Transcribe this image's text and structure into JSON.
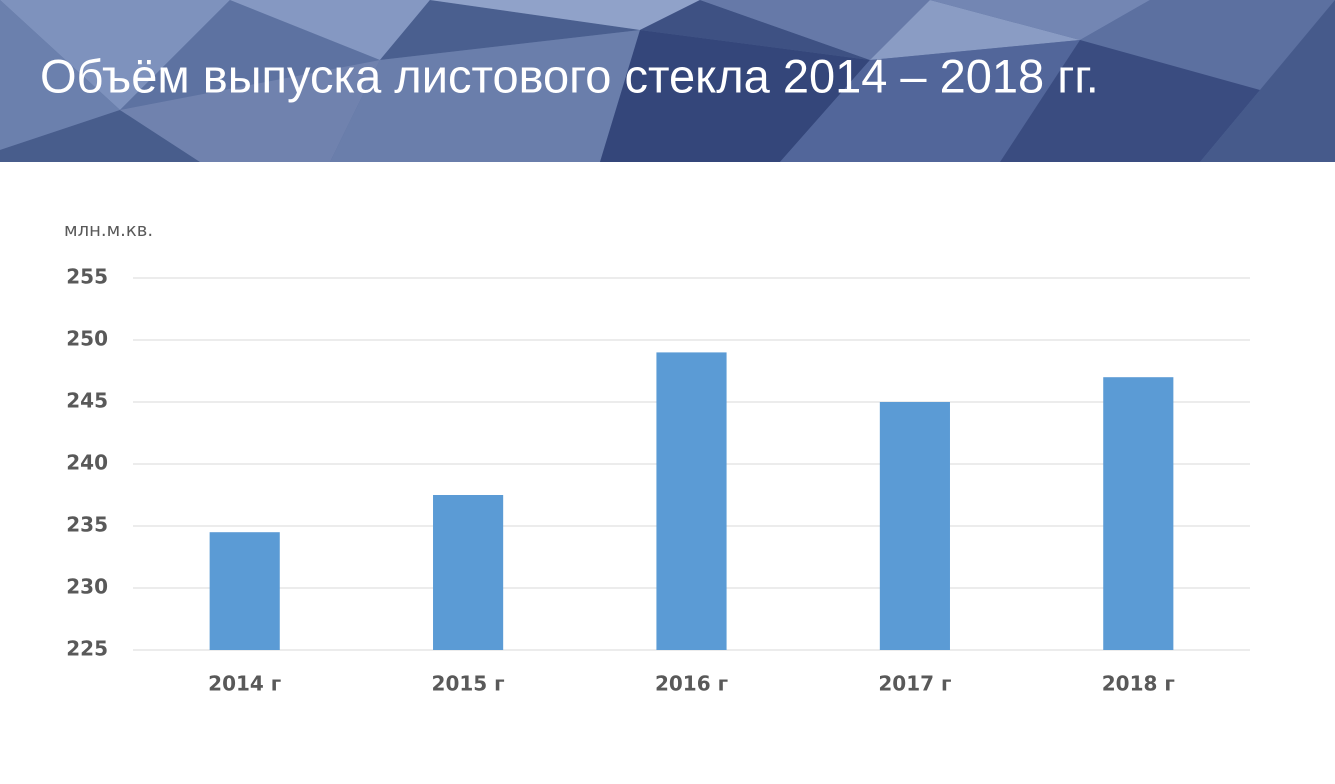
{
  "chart_data": {
    "type": "bar",
    "title": "Объём выпуска листового стекла 2014 – 2018 гг.",
    "y_axis_label": "млн.м.кв.",
    "categories": [
      "2014 г",
      "2015 г",
      "2016 г",
      "2017 г",
      "2018 г"
    ],
    "values": [
      234.5,
      237.5,
      249,
      245,
      247
    ],
    "color": "#5b9bd5",
    "ylim": [
      225,
      255
    ],
    "yticks": [
      225,
      230,
      235,
      240,
      245,
      250,
      255
    ],
    "grid": true
  }
}
